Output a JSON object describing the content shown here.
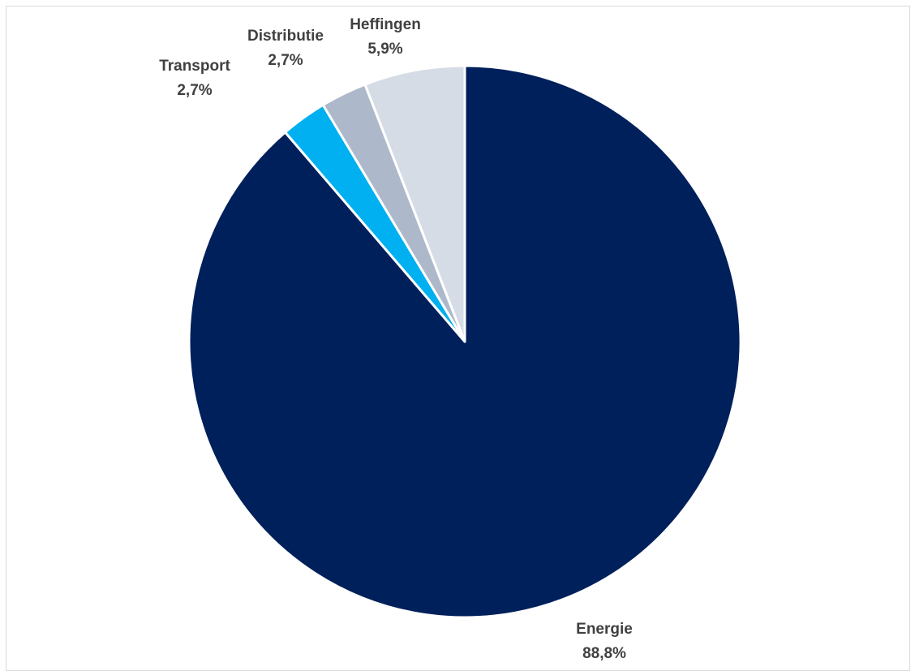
{
  "chart_data": {
    "type": "pie",
    "start_angle_deg": 0,
    "direction": "clockwise",
    "slices": [
      {
        "label": "Energie",
        "value": 88.8,
        "value_label": "88,8%",
        "color": "#00205b"
      },
      {
        "label": "Transport",
        "value": 2.7,
        "value_label": "2,7%",
        "color": "#00b0f0"
      },
      {
        "label": "Distributie",
        "value": 2.7,
        "value_label": "2,7%",
        "color": "#adb9ca"
      },
      {
        "label": "Heffingen",
        "value": 5.9,
        "value_label": "5,9%",
        "color": "#d6dce5"
      }
    ],
    "legend": "none",
    "data_labels": "outside-end"
  }
}
